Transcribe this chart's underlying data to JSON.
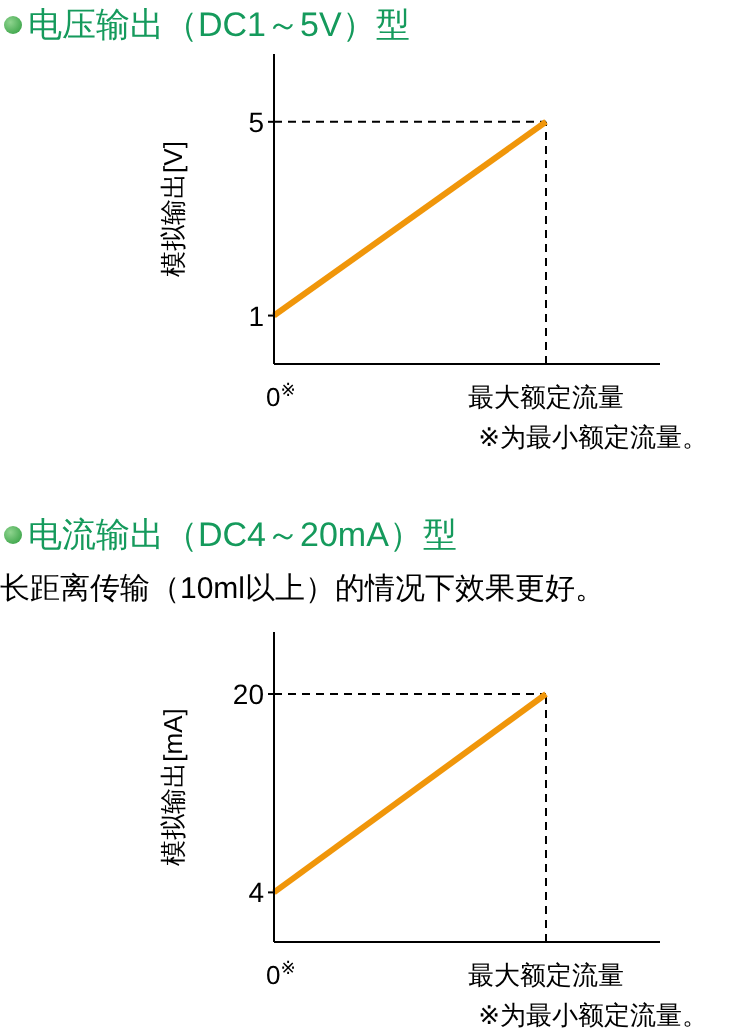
{
  "chart_data": [
    {
      "type": "line",
      "title": "电压输出（DC1～5V）型",
      "ylabel": "模拟输出[V]",
      "categories": [
        "0$^{※}$",
        "最大额定流量"
      ],
      "series": [
        {
          "color": "#f0960a",
          "values": [
            1,
            5
          ]
        }
      ],
      "ylim": [
        0,
        6.4
      ],
      "yticks": [
        1,
        5
      ],
      "ref_lines": [
        {
          "axis": "y",
          "value": 5,
          "color": "#000000",
          "line_style": "dashed"
        },
        {
          "axis": "x",
          "value": "最大额定流量",
          "color": "#000000",
          "line_style": "dashed"
        }
      ],
      "annotations": [
        "※为最小额定流量。"
      ]
    },
    {
      "type": "line",
      "title": "电流输出（DC4～20mA）型",
      "subtitle": "长距离传输（10ml以上）的情况下效果更好。",
      "ylabel": "模拟输出[mA]",
      "categories": [
        "0$^{※}$",
        "最大额定流量"
      ],
      "series": [
        {
          "color": "#f0960a",
          "values": [
            4,
            20
          ]
        }
      ],
      "ylim": [
        0,
        25
      ],
      "yticks": [
        4,
        20
      ],
      "ref_lines": [
        {
          "axis": "y",
          "value": 20,
          "color": "#000000",
          "line_style": "dashed"
        },
        {
          "axis": "x",
          "value": "最大额定流量",
          "color": "#000000",
          "line_style": "dashed"
        }
      ],
      "annotations": [
        "※为最小额定流量。"
      ]
    }
  ]
}
